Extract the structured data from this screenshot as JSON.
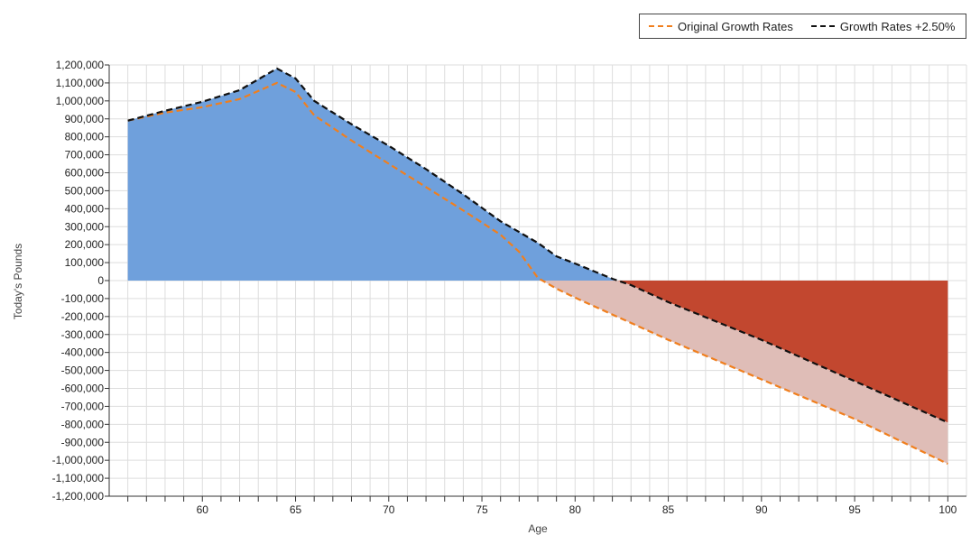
{
  "legend": {
    "items": [
      {
        "label": "Original Growth Rates",
        "color": "#f07f1e",
        "style": "dashed"
      },
      {
        "label": "Growth Rates +2.50%",
        "color": "#111111",
        "style": "dashed"
      }
    ],
    "placement": "top-right"
  },
  "chart_data": {
    "type": "area",
    "title": "",
    "xlabel": "Age",
    "ylabel": "Today's Pounds",
    "xlim": [
      55,
      101
    ],
    "ylim": [
      -1200000,
      1200000
    ],
    "y_tick_step": 100000,
    "x_ticks": [
      60,
      65,
      70,
      75,
      80,
      85,
      90,
      95,
      100
    ],
    "x_minor_step": 1,
    "grid": true,
    "colors": {
      "positive_fill": "#6fa0dc",
      "negative_fill": "#c2472f",
      "difference_fill": "#dfbdb7",
      "grid": "#dddddd"
    },
    "series": [
      {
        "name": "Original Growth Rates",
        "color": "#f07f1e",
        "points": [
          [
            56,
            890000
          ],
          [
            58,
            935000
          ],
          [
            60,
            965000
          ],
          [
            62,
            1010000
          ],
          [
            64,
            1100000
          ],
          [
            65,
            1050000
          ],
          [
            66,
            920000
          ],
          [
            68,
            780000
          ],
          [
            70,
            650000
          ],
          [
            72,
            520000
          ],
          [
            74,
            390000
          ],
          [
            76,
            255000
          ],
          [
            77,
            160000
          ],
          [
            78,
            15000
          ],
          [
            79,
            -45000
          ],
          [
            80,
            -95000
          ],
          [
            85,
            -330000
          ],
          [
            90,
            -550000
          ],
          [
            95,
            -770000
          ],
          [
            100,
            -1020000
          ]
        ]
      },
      {
        "name": "Growth Rates +2.50%",
        "color": "#111111",
        "points": [
          [
            56,
            890000
          ],
          [
            58,
            945000
          ],
          [
            60,
            995000
          ],
          [
            62,
            1060000
          ],
          [
            64,
            1180000
          ],
          [
            65,
            1125000
          ],
          [
            66,
            1000000
          ],
          [
            68,
            870000
          ],
          [
            70,
            750000
          ],
          [
            72,
            620000
          ],
          [
            74,
            480000
          ],
          [
            76,
            330000
          ],
          [
            78,
            210000
          ],
          [
            79,
            135000
          ],
          [
            80,
            95000
          ],
          [
            82,
            10000
          ],
          [
            83,
            -25000
          ],
          [
            85,
            -120000
          ],
          [
            90,
            -330000
          ],
          [
            95,
            -560000
          ],
          [
            100,
            -790000
          ]
        ]
      }
    ]
  }
}
